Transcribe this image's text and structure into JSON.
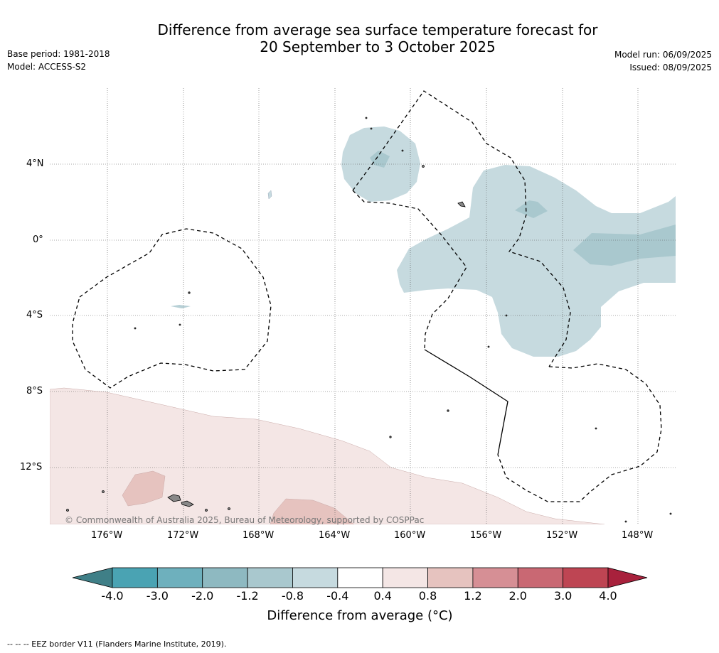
{
  "header": {
    "title_line1": "Difference from average sea surface temperature forecast for",
    "title_line2": "20 September to 3 October 2025",
    "base_period": "Base period: 1981-2018",
    "model": "Model: ACCESS-S2",
    "model_run": "Model run: 06/09/2025",
    "issued": "Issued: 08/09/2025"
  },
  "map": {
    "lat_labels": [
      "4°N",
      "0°",
      "4°S",
      "8°S",
      "12°S"
    ],
    "lon_labels": [
      "176°W",
      "172°W",
      "168°W",
      "164°W",
      "160°W",
      "156°W",
      "152°W",
      "148°W"
    ],
    "copyright": "© Commonwealth of Australia 2025, Bureau of Meteorology, supported by COSPPac",
    "colors": {
      "cool_light": "#c6dadf",
      "cool_mid": "#a9c8ce",
      "warm_light": "#f4e6e5",
      "warm_mid": "#e6c3bf"
    }
  },
  "colorbar": {
    "title": "Difference from average (°C)",
    "ticks": [
      "-4.0",
      "-3.0",
      "-2.0",
      "-1.2",
      "-0.8",
      "-0.4",
      "0.4",
      "0.8",
      "1.2",
      "2.0",
      "3.0",
      "4.0"
    ],
    "colors": [
      "#3f7f87",
      "#4aa3b3",
      "#6eb0bd",
      "#8eb9c1",
      "#a9c8ce",
      "#c6dadf",
      "#ffffff",
      "#f4e6e5",
      "#e6c3bf",
      "#d68f95",
      "#c96873",
      "#be4553",
      "#a8213c"
    ]
  },
  "footnote": "--  --  -- EEZ border V11 (Flanders Marine Institute, 2019)."
}
